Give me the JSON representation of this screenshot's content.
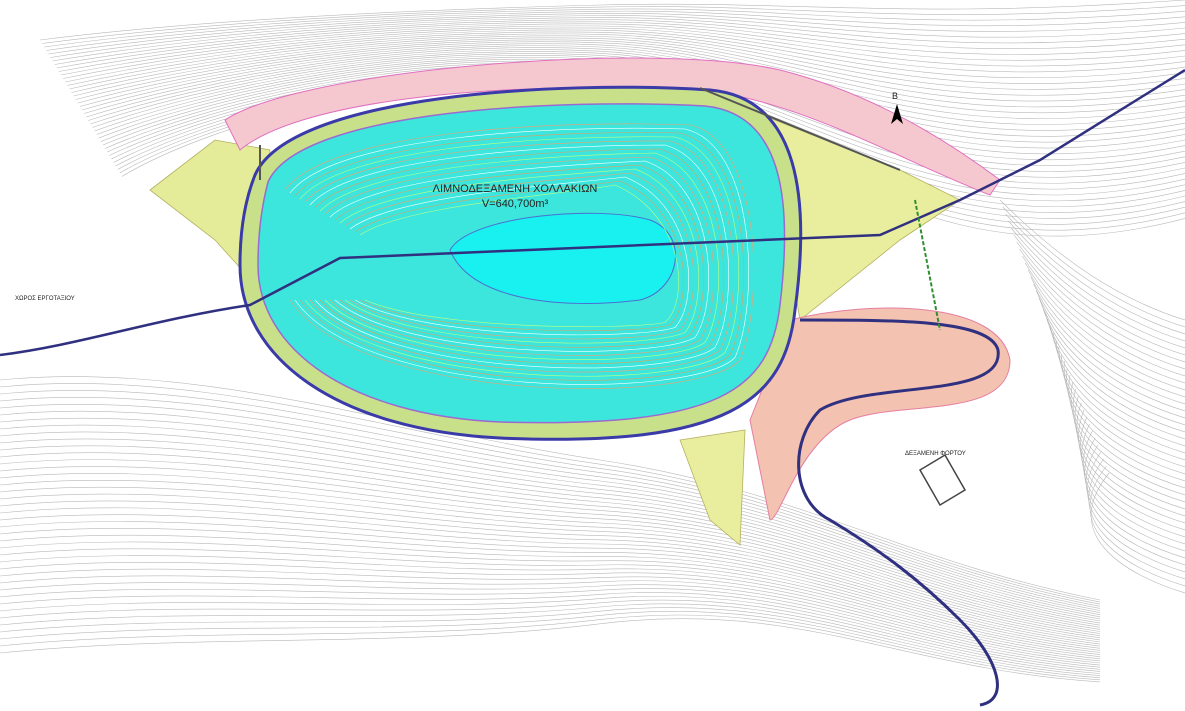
{
  "map": {
    "reservoir_label": "ΛΙΜΝΟΔΕΞΑΜΕΝΗ ΧΟΛΛΑΚΙΩΝ",
    "volume_label": "V=640,700m³",
    "site_label": "ΧΩΡΟΣ ΕΡΓΟΤΑΞΙΟΥ",
    "station_label": "ΔΕΞΑΜΕΝΗ ΦΟΡΤΟΥ",
    "north_label": "Β"
  }
}
